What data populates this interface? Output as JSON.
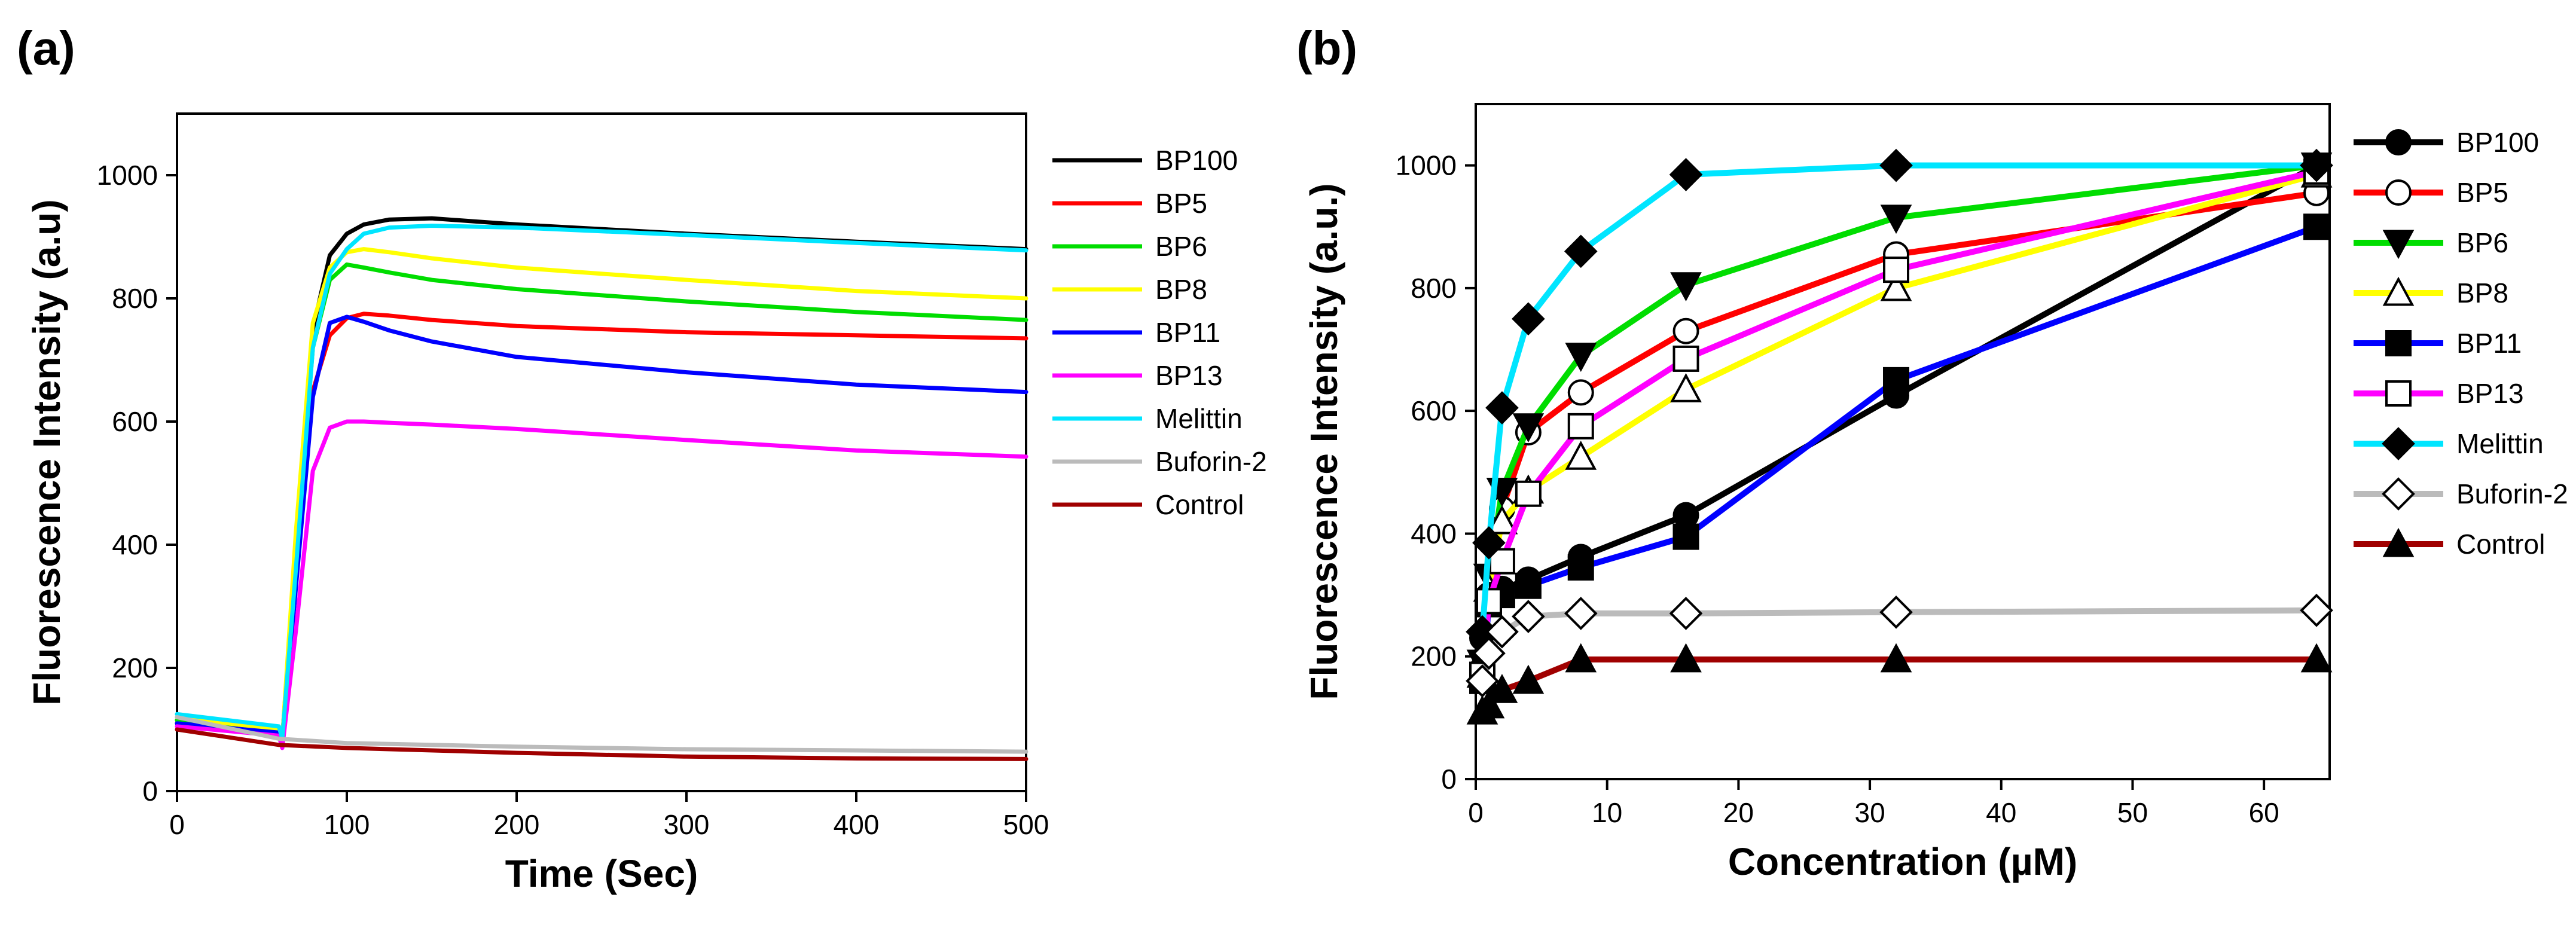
{
  "chart_data": [
    {
      "type": "line",
      "panel_label": "(a)",
      "xlabel": "Time (Sec)",
      "ylabel": "Fluorescence Intensity (a.u)",
      "xlim": [
        0,
        500
      ],
      "ylim": [
        0,
        1100
      ],
      "xticks": [
        0,
        100,
        200,
        300,
        400,
        500
      ],
      "yticks": [
        0,
        200,
        400,
        600,
        800,
        1000
      ],
      "grid": false,
      "legend_position": "right",
      "series": [
        {
          "name": "BP100",
          "color": "#000000",
          "x": [
            0,
            60,
            62,
            70,
            80,
            90,
            100,
            110,
            125,
            150,
            200,
            300,
            400,
            500
          ],
          "y": [
            115,
            100,
            85,
            400,
            750,
            870,
            905,
            920,
            928,
            930,
            920,
            905,
            892,
            880
          ]
        },
        {
          "name": "BP5",
          "color": "#ff0000",
          "x": [
            0,
            60,
            62,
            70,
            80,
            90,
            100,
            110,
            125,
            150,
            200,
            300,
            400,
            500
          ],
          "y": [
            110,
            95,
            80,
            350,
            650,
            740,
            768,
            775,
            772,
            765,
            755,
            745,
            740,
            735
          ]
        },
        {
          "name": "BP6",
          "color": "#00dd00",
          "x": [
            0,
            60,
            62,
            70,
            80,
            90,
            100,
            110,
            125,
            150,
            200,
            300,
            400,
            500
          ],
          "y": [
            115,
            100,
            85,
            380,
            720,
            830,
            855,
            850,
            842,
            830,
            815,
            795,
            778,
            765
          ]
        },
        {
          "name": "BP8",
          "color": "#ffff00",
          "x": [
            0,
            60,
            62,
            70,
            80,
            90,
            100,
            110,
            125,
            150,
            200,
            300,
            400,
            500
          ],
          "y": [
            120,
            100,
            85,
            420,
            760,
            850,
            875,
            880,
            875,
            865,
            850,
            830,
            812,
            800
          ]
        },
        {
          "name": "BP11",
          "color": "#0000ff",
          "x": [
            0,
            60,
            62,
            70,
            80,
            90,
            100,
            110,
            125,
            150,
            200,
            300,
            400,
            500
          ],
          "y": [
            110,
            95,
            80,
            330,
            640,
            760,
            770,
            762,
            748,
            730,
            705,
            680,
            660,
            648
          ]
        },
        {
          "name": "BP13",
          "color": "#ff00ff",
          "x": [
            0,
            60,
            62,
            70,
            80,
            90,
            100,
            110,
            125,
            150,
            200,
            300,
            400,
            500
          ],
          "y": [
            105,
            90,
            70,
            260,
            520,
            590,
            600,
            600,
            598,
            595,
            588,
            570,
            553,
            543
          ]
        },
        {
          "name": "Melittin",
          "color": "#00e5ff",
          "x": [
            0,
            60,
            62,
            70,
            80,
            90,
            100,
            110,
            125,
            150,
            200,
            300,
            400,
            500
          ],
          "y": [
            125,
            105,
            85,
            360,
            720,
            840,
            880,
            905,
            915,
            918,
            915,
            903,
            890,
            878
          ]
        },
        {
          "name": "Buforin-2",
          "color": "#bbbbbb",
          "x": [
            0,
            60,
            100,
            200,
            300,
            400,
            500
          ],
          "y": [
            120,
            85,
            78,
            72,
            68,
            66,
            64
          ]
        },
        {
          "name": "Control",
          "color": "#a00000",
          "x": [
            0,
            60,
            100,
            200,
            300,
            400,
            500
          ],
          "y": [
            100,
            75,
            70,
            62,
            56,
            53,
            52
          ]
        }
      ]
    },
    {
      "type": "line",
      "panel_label": "(b)",
      "xlabel": "Concentration (µM)",
      "ylabel": "Fluorescence Intensity (a.u.)",
      "xlim": [
        0,
        65
      ],
      "ylim": [
        0,
        1100
      ],
      "xticks": [
        0,
        10,
        20,
        30,
        40,
        50,
        60
      ],
      "yticks": [
        0,
        200,
        400,
        600,
        800,
        1000
      ],
      "grid": false,
      "legend_position": "right",
      "x": [
        0.5,
        1,
        2,
        4,
        8,
        16,
        32,
        64
      ],
      "series": [
        {
          "name": "BP100",
          "color": "#000000",
          "marker": "circle",
          "marker_fill": "#000000",
          "values": [
            230,
            290,
            310,
            325,
            362,
            430,
            625,
            1000
          ]
        },
        {
          "name": "BP5",
          "color": "#ff0000",
          "marker": "circle",
          "marker_fill": "#ffffff",
          "values": [
            180,
            300,
            440,
            565,
            630,
            730,
            855,
            955
          ]
        },
        {
          "name": "BP6",
          "color": "#00dd00",
          "marker": "triangle-down",
          "marker_fill": "#000000",
          "values": [
            190,
            330,
            470,
            575,
            690,
            805,
            915,
            1000
          ]
        },
        {
          "name": "BP8",
          "color": "#ffff00",
          "marker": "triangle-up",
          "marker_fill": "#ffffff",
          "values": [
            170,
            310,
            420,
            470,
            525,
            635,
            800,
            985
          ]
        },
        {
          "name": "BP11",
          "color": "#0000ff",
          "marker": "square",
          "marker_fill": "#000000",
          "values": [
            160,
            285,
            300,
            315,
            345,
            395,
            650,
            900
          ]
        },
        {
          "name": "BP13",
          "color": "#ff00ff",
          "marker": "square",
          "marker_fill": "#ffffff",
          "values": [
            170,
            290,
            355,
            465,
            575,
            685,
            830,
            990
          ]
        },
        {
          "name": "Melittin",
          "color": "#00e5ff",
          "marker": "diamond",
          "marker_fill": "#000000",
          "values": [
            240,
            385,
            605,
            750,
            860,
            985,
            1000,
            1000
          ]
        },
        {
          "name": "Buforin-2",
          "color": "#bbbbbb",
          "marker": "diamond",
          "marker_fill": "#ffffff",
          "values": [
            160,
            205,
            240,
            265,
            270,
            270,
            272,
            275
          ]
        },
        {
          "name": "Control",
          "color": "#a00000",
          "marker": "triangle-up",
          "marker_fill": "#000000",
          "values": [
            110,
            120,
            145,
            160,
            195,
            195,
            195,
            195
          ]
        }
      ]
    }
  ]
}
